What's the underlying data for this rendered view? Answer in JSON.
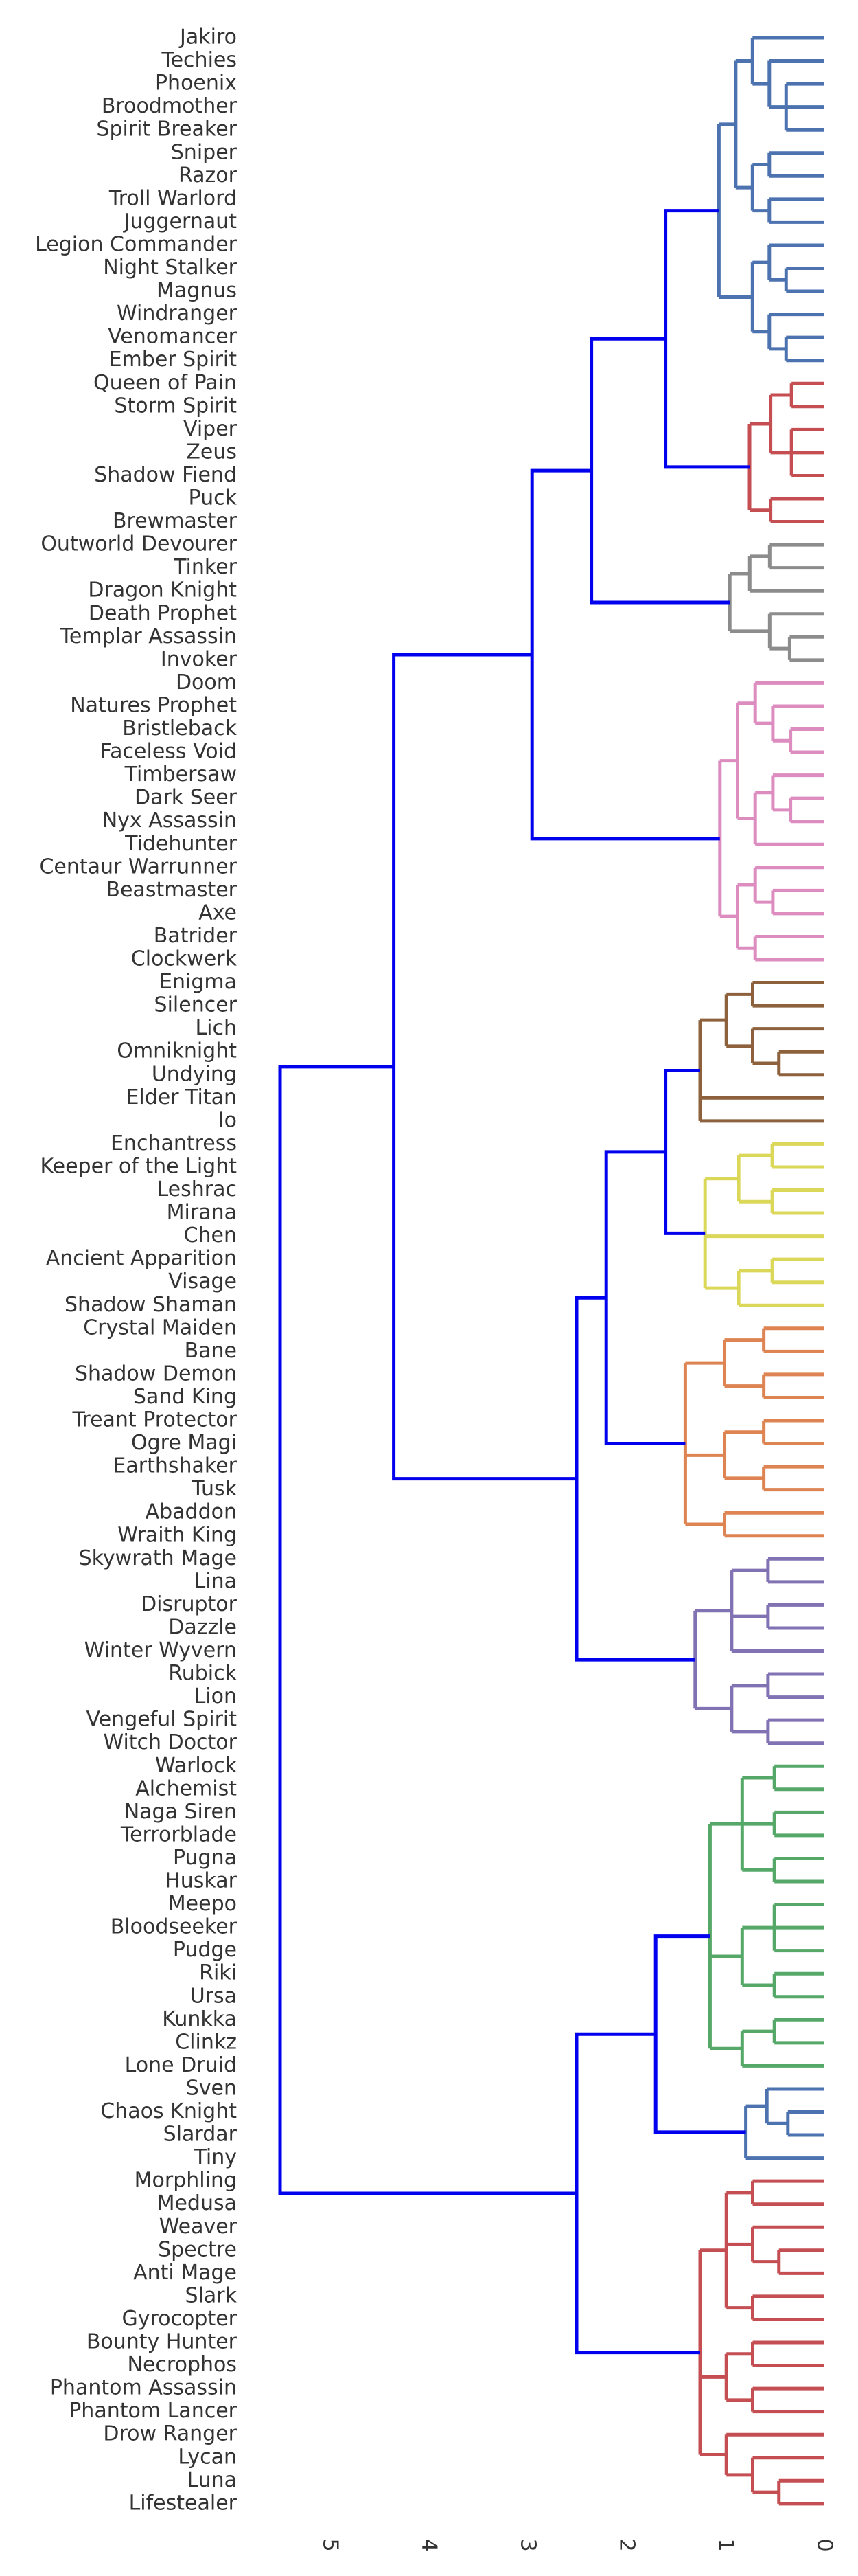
{
  "chart_data": {
    "type": "dendrogram",
    "orientation": "left",
    "xaxis": {
      "reversed": true,
      "ticks": [
        0,
        1,
        2,
        3,
        4,
        5
      ],
      "range": [
        5.6,
        0
      ]
    },
    "leaves": [
      "Jakiro",
      "Techies",
      "Phoenix",
      "Broodmother",
      "Spirit Breaker",
      "Sniper",
      "Razor",
      "Troll Warlord",
      "Juggernaut",
      "Legion Commander",
      "Night Stalker",
      "Magnus",
      "Windranger",
      "Venomancer",
      "Ember Spirit",
      "Queen of Pain",
      "Storm Spirit",
      "Viper",
      "Zeus",
      "Shadow Fiend",
      "Puck",
      "Brewmaster",
      "Outworld Devourer",
      "Tinker",
      "Dragon Knight",
      "Death Prophet",
      "Templar Assassin",
      "Invoker",
      "Doom",
      "Natures Prophet",
      "Bristleback",
      "Faceless Void",
      "Timbersaw",
      "Dark Seer",
      "Nyx Assassin",
      "Tidehunter",
      "Centaur Warrunner",
      "Beastmaster",
      "Axe",
      "Batrider",
      "Clockwerk",
      "Enigma",
      "Silencer",
      "Lich",
      "Omniknight",
      "Undying",
      "Elder Titan",
      "Io",
      "Enchantress",
      "Keeper of the Light",
      "Leshrac",
      "Mirana",
      "Chen",
      "Ancient Apparition",
      "Visage",
      "Shadow Shaman",
      "Crystal Maiden",
      "Bane",
      "Shadow Demon",
      "Sand King",
      "Treant Protector",
      "Ogre Magi",
      "Earthshaker",
      "Tusk",
      "Abaddon",
      "Wraith King",
      "Skywrath Mage",
      "Lina",
      "Disruptor",
      "Dazzle",
      "Winter Wyvern",
      "Rubick",
      "Lion",
      "Vengeful Spirit",
      "Witch Doctor",
      "Warlock",
      "Alchemist",
      "Naga Siren",
      "Terrorblade",
      "Pugna",
      "Huskar",
      "Meepo",
      "Bloodseeker",
      "Pudge",
      "Riki",
      "Ursa",
      "Kunkka",
      "Clinkz",
      "Lone Druid",
      "Sven",
      "Chaos Knight",
      "Slardar",
      "Tiny",
      "Morphling",
      "Medusa",
      "Weaver",
      "Spectre",
      "Anti Mage",
      "Slark",
      "Gyrocopter",
      "Bounty Hunter",
      "Necrophos",
      "Phantom Assassin",
      "Phantom Lancer",
      "Drow Ranger",
      "Lycan",
      "Luna",
      "Lifestealer"
    ],
    "clusters": [
      {
        "leaves": [
          0,
          14
        ],
        "color": "#4c72b0",
        "tree": [
          [
            [
              [
                [
                  0,
                  [
                    1,
                    [
                      2,
                      3,
                      4
                    ]
                  ]
                ],
                [
                  [
                    5,
                    6
                  ],
                  [
                    7,
                    8
                  ]
                ]
              ],
              [
                [
                  [
                    9,
                    [
                      10,
                      11
                    ]
                  ],
                  [
                    12,
                    [
                      13,
                      14
                    ]
                  ]
                ]
              ]
            ]
          ]
        ]
      },
      {
        "leaves": [
          15,
          21
        ],
        "color": "#c44e52",
        "tree": [
          [
            [
              15,
              16
            ],
            [
              17,
              18,
              19
            ]
          ],
          [
            20,
            21
          ]
        ]
      },
      {
        "leaves": [
          22,
          27
        ],
        "color": "#8c8c8c",
        "tree": [
          [
            [
              22,
              23
            ],
            [
              24
            ]
          ],
          [
            [
              25,
              [
                26,
                27
              ]
            ]
          ]
        ]
      },
      {
        "leaves": [
          28,
          40
        ],
        "color": "#dd8cc0",
        "tree": [
          [
            [
              28,
              [
                29,
                [
                  30,
                  31
                ]
              ]
            ],
            [
              [
                32,
                [
                  33,
                  34
                ]
              ],
              35
            ]
          ],
          [
            [
              36,
              [
                37,
                38
              ]
            ],
            [
              39,
              40
            ]
          ]
        ]
      },
      {
        "leaves": [
          41,
          47
        ],
        "color": "#8c613c",
        "tree": [
          [
            [
              41,
              42
            ],
            [
              43,
              [
                44,
                45
              ]
            ]
          ],
          [
            46
          ],
          [
            47
          ]
        ]
      },
      {
        "leaves": [
          48,
          55
        ],
        "color": "#dbd859",
        "tree": [
          [
            [
              48,
              49
            ],
            [
              50,
              51
            ]
          ],
          [
            52
          ],
          [
            [
              53,
              54
            ],
            55
          ]
        ]
      },
      {
        "leaves": [
          56,
          65
        ],
        "color": "#dd8452",
        "tree": [
          [
            [
              56,
              57
            ],
            [
              58,
              59
            ]
          ],
          [
            [
              60,
              61
            ],
            [
              62,
              63
            ]
          ],
          [
            64,
            65
          ]
        ]
      },
      {
        "leaves": [
          66,
          74
        ],
        "color": "#8172b3",
        "tree": [
          [
            [
              66,
              67
            ],
            [
              68,
              69
            ],
            [
              70
            ]
          ],
          [
            [
              71,
              72
            ],
            [
              73,
              74
            ]
          ]
        ]
      },
      {
        "leaves": [
          75,
          88
        ],
        "color": "#55a868",
        "tree": [
          [
            [
              75,
              76
            ],
            [
              77,
              78
            ],
            [
              79,
              80
            ]
          ],
          [
            [
              81,
              82,
              83
            ],
            [
              84,
              85
            ]
          ],
          [
            [
              86,
              87
            ],
            88
          ]
        ]
      },
      {
        "leaves": [
          89,
          92
        ],
        "color": "#4c72b0",
        "tree": [
          [
            [
              89,
              [
                90,
                91
              ]
            ],
            92
          ]
        ]
      },
      {
        "leaves": [
          93,
          107
        ],
        "color": "#c44e52",
        "tree": [
          [
            [
              93,
              94
            ],
            [
              95,
              [
                96,
                97
              ]
            ],
            [
              98,
              99
            ]
          ],
          [
            [
              100,
              101
            ],
            [
              102,
              103
            ]
          ],
          [
            104,
            [
              105,
              [
                106,
                107
              ]
            ]
          ]
        ]
      }
    ],
    "cluster_heights": [
      1.4,
      0.75,
      0.95,
      1.05,
      1.25,
      1.2,
      1.4,
      1.3,
      1.15,
      1.0,
      1.25
    ],
    "links": [
      {
        "children": [
          0,
          1
        ],
        "height": 1.6
      },
      {
        "children": [
          "n0",
          2
        ],
        "height": 2.35
      },
      {
        "children": [
          "n1",
          3
        ],
        "height": 2.95
      },
      {
        "children": [
          4,
          5
        ],
        "height": 1.6
      },
      {
        "children": [
          "n3",
          6
        ],
        "height": 2.2
      },
      {
        "children": [
          "n4",
          7
        ],
        "height": 2.5
      },
      {
        "children": [
          "n2",
          "n5"
        ],
        "height": 4.35
      },
      {
        "children": [
          8,
          9
        ],
        "height": 1.7
      },
      {
        "children": [
          "n7",
          10
        ],
        "height": 2.5
      },
      {
        "children": [
          "n6",
          "n8"
        ],
        "height": 5.5
      }
    ],
    "link_color": "#0000ee"
  }
}
